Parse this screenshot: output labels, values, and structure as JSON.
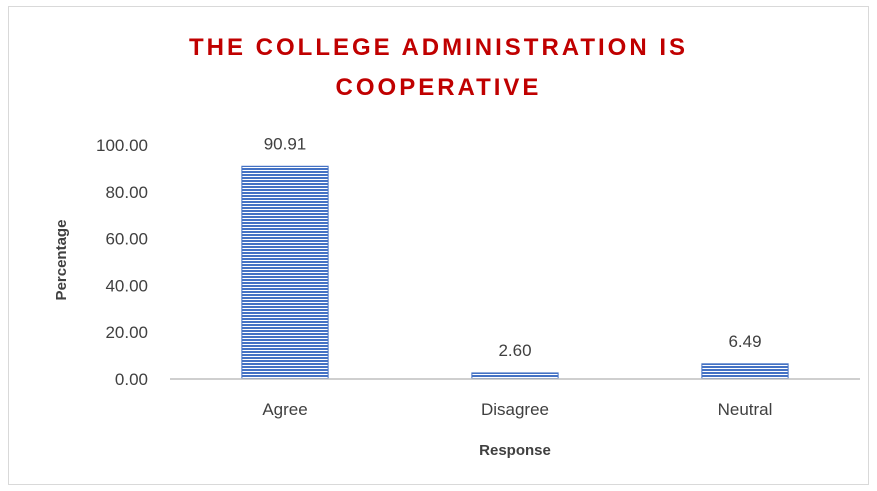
{
  "chart_data": {
    "type": "bar",
    "title_lines": [
      "THE COLLEGE ADMINISTRATION IS",
      "COOPERATIVE"
    ],
    "categories": [
      "Agree",
      "Disagree",
      "Neutral"
    ],
    "values": [
      90.91,
      2.6,
      6.49
    ],
    "value_labels": [
      "90.91",
      "2.60",
      "6.49"
    ],
    "xlabel": "Response",
    "ylabel": "Percentage",
    "ylim": [
      0,
      100
    ],
    "yticks": [
      "0.00",
      "20.00",
      "40.00",
      "60.00",
      "80.00",
      "100.00"
    ],
    "grid": false,
    "legend": "none",
    "colors": {
      "bar": "#4472c4",
      "bar_stripe": "#ffffff",
      "title": "#c00000",
      "axis": "#bfbfbf",
      "text": "#404040"
    }
  }
}
